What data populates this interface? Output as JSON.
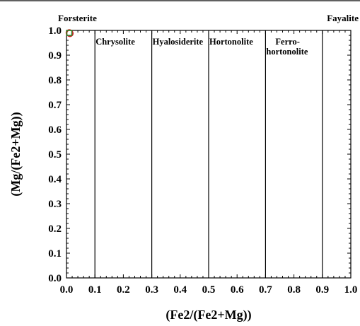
{
  "chart_data": {
    "type": "scatter",
    "title": "",
    "xlabel": "(Fe2/(Fe2+Mg))",
    "ylabel": "(Mg/(Fe2+Mg))",
    "xlim": [
      0.0,
      1.0
    ],
    "ylim": [
      0.0,
      1.0
    ],
    "x_ticks": [
      "0.0",
      "0.1",
      "0.2",
      "0.3",
      "0.4",
      "0.5",
      "0.6",
      "0.7",
      "0.8",
      "0.9",
      "1.0"
    ],
    "y_ticks": [
      "0.0",
      "0.1",
      "0.2",
      "0.3",
      "0.4",
      "0.5",
      "0.6",
      "0.7",
      "0.8",
      "0.9",
      "1.0"
    ],
    "grid": false,
    "end_members": {
      "left": "Forsterite",
      "right": "Fayalite"
    },
    "boundaries": [
      0.1,
      0.3,
      0.5,
      0.7,
      0.9
    ],
    "regions": [
      {
        "lines": [
          "Chrysolite"
        ],
        "x": 0.1
      },
      {
        "lines": [
          "Hyalosiderite"
        ],
        "x": 0.3
      },
      {
        "lines": [
          "Hortonolite"
        ],
        "x": 0.5
      },
      {
        "lines": [
          "Ferro-",
          "hortonolite"
        ],
        "x": 0.7
      }
    ],
    "series": [
      {
        "marker": "circle",
        "color": "#cc2222",
        "points": [
          {
            "x": 0.01,
            "y": 0.99
          },
          {
            "x": 0.012,
            "y": 0.988
          }
        ]
      },
      {
        "marker": "square",
        "color": "#2a8a2a",
        "points": [
          {
            "x": 0.01,
            "y": 0.99
          }
        ]
      }
    ]
  }
}
